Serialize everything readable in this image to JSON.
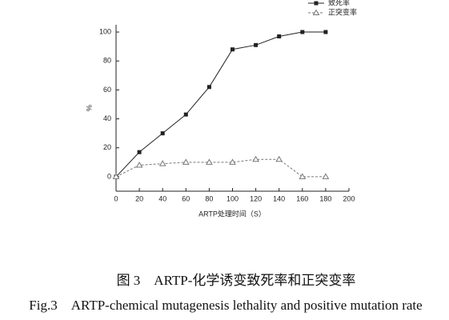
{
  "chart_data": {
    "type": "line",
    "x": [
      0,
      20,
      40,
      60,
      80,
      100,
      120,
      140,
      160,
      180
    ],
    "series": [
      {
        "name": "致死率",
        "color": "#222222",
        "marker": "square",
        "dash": false,
        "values": [
          0,
          17,
          30,
          43,
          62,
          88,
          91,
          97,
          100,
          100
        ]
      },
      {
        "name": "正突变率",
        "color": "#777777",
        "marker": "triangle",
        "dash": true,
        "values": [
          0,
          8,
          9,
          10,
          10,
          10,
          12,
          12,
          0,
          0
        ]
      }
    ],
    "xlabel": "ARTP处理时间（S）",
    "ylabel": "%",
    "xlim": [
      0,
      200
    ],
    "xticks": [
      0,
      20,
      40,
      60,
      80,
      100,
      120,
      140,
      160,
      180,
      200
    ],
    "ylim": [
      -10,
      105
    ],
    "yticks": [
      0,
      20,
      40,
      60,
      80,
      100
    ],
    "grid": false,
    "legend": "top-right"
  },
  "caption": {
    "zh": "图 3　ARTP-化学诱变致死率和正突变率",
    "en": "Fig.3　ARTP-chemical mutagenesis lethality and positive mutation rate"
  }
}
